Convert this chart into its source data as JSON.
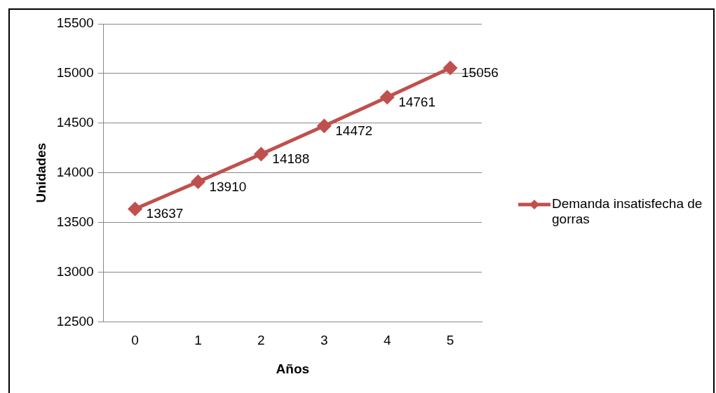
{
  "chart_data": {
    "type": "line",
    "xlabel": "Años",
    "ylabel": "Unidades",
    "categories": [
      "0",
      "1",
      "2",
      "3",
      "4",
      "5"
    ],
    "series": [
      {
        "name": "Demanda insatisfecha de gorras",
        "color": "#c0504d",
        "values": [
          13637,
          13910,
          14188,
          14472,
          14761,
          15056
        ]
      }
    ],
    "ylim": [
      12500,
      15500
    ],
    "yticks": [
      12500,
      13000,
      13500,
      14000,
      14500,
      15000,
      15500
    ],
    "grid": "y",
    "legend": "right",
    "marker": "diamond",
    "data_labels": true
  }
}
